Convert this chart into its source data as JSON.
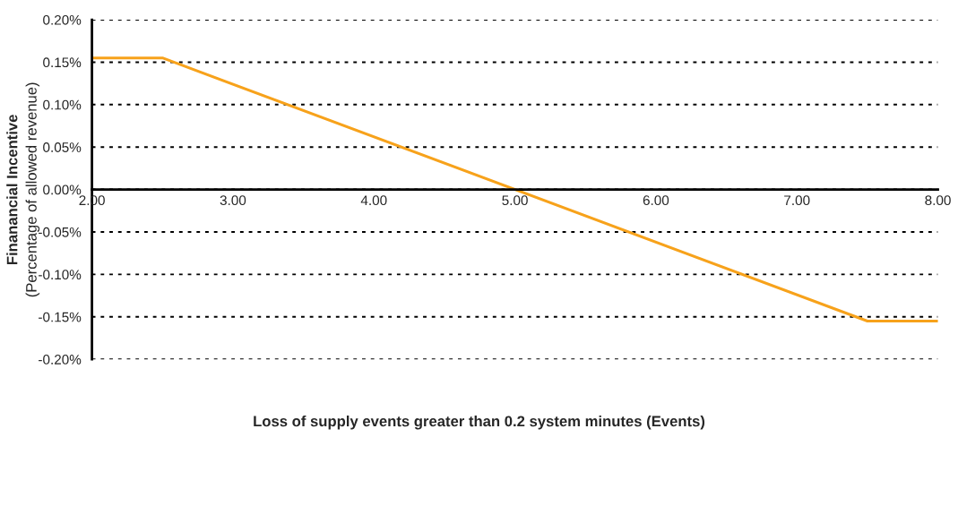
{
  "chart_data": {
    "type": "line",
    "xlabel": "Loss of supply events greater than 0.2 system minutes (Events)",
    "ylabel": "Finanancial Incentive\n(Percentage of allowed revenue)",
    "series": [
      {
        "x": [
          2,
          2.5,
          7.5,
          8
        ],
        "values": [
          0.155,
          0.155,
          -0.155,
          -0.155
        ],
        "color": "#f7a21b"
      }
    ],
    "xlim": [
      2,
      8
    ],
    "xticks": [
      {
        "value": 2,
        "label": "2.00"
      },
      {
        "value": 3,
        "label": "3.00"
      },
      {
        "value": 4,
        "label": "4.00"
      },
      {
        "value": 5,
        "label": "5.00"
      },
      {
        "value": 6,
        "label": "6.00"
      },
      {
        "value": 7,
        "label": "7.00"
      },
      {
        "value": 8,
        "label": "8.00"
      }
    ],
    "ylim": [
      -0.2,
      0.2
    ],
    "yticks": [
      {
        "value": -0.2,
        "label": "-0.20%"
      },
      {
        "value": -0.15,
        "label": "-0.15%"
      },
      {
        "value": -0.1,
        "label": "-0.10%"
      },
      {
        "value": -0.05,
        "label": "-0.05%"
      },
      {
        "value": 0,
        "label": "0.00%"
      },
      {
        "value": 0.05,
        "label": "0.05%"
      },
      {
        "value": 0.1,
        "label": "0.10%"
      },
      {
        "value": 0.15,
        "label": "0.15%"
      },
      {
        "value": 0.2,
        "label": "0.20%"
      }
    ],
    "grid": "y",
    "marker": "none",
    "line_style": "solid"
  }
}
